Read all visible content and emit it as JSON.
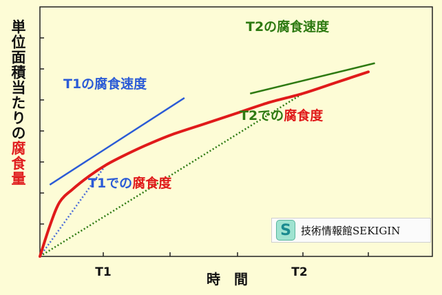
{
  "chart_data": {
    "type": "line",
    "title": "",
    "xlabel": "時　間",
    "ylabel": "単位面積当たりの腐食量",
    "ylabel_plain": "単位面積当たりの",
    "ylabel_emphasis": "腐食量",
    "x_ticks": [
      "T1",
      "T2"
    ],
    "xlim": [
      0,
      1
    ],
    "ylim": [
      0,
      1
    ],
    "grid": false,
    "curve": {
      "name": "",
      "color": "#e01a1a",
      "x": [
        0,
        0.03,
        0.06,
        0.1,
        0.15,
        0.2,
        0.25,
        0.32,
        0.4,
        0.5,
        0.6,
        0.7,
        0.8,
        0.9,
        1.0
      ],
      "y": [
        0,
        0.14,
        0.25,
        0.31,
        0.37,
        0.42,
        0.46,
        0.51,
        0.56,
        0.61,
        0.66,
        0.71,
        0.75,
        0.8,
        0.85
      ]
    },
    "tangent_lines": [
      {
        "color": "#2b5bd6",
        "x": [
          0.03,
          0.44
        ],
        "y": [
          0.33,
          0.73
        ]
      },
      {
        "color": "#2e7a12",
        "x": [
          0.64,
          1.02
        ],
        "y": [
          0.75,
          0.89
        ]
      }
    ],
    "secant_lines": [
      {
        "color": "#4a6bd8",
        "x": [
          0,
          0.2
        ],
        "y": [
          0,
          0.42
        ]
      },
      {
        "color": "#2e7a12",
        "x": [
          0,
          0.8
        ],
        "y": [
          0,
          0.75
        ]
      }
    ],
    "annotations": [
      {
        "id": "t1_rate",
        "text": "T1の腐食速度",
        "color": "#2b5bd6"
      },
      {
        "id": "t1_avg",
        "text_plain": "T1での",
        "text_emphasis": "腐食度",
        "color": "#2b5bd6",
        "emphasis_color": "#e01a1a"
      },
      {
        "id": "t2_rate",
        "text": "T2の腐食速度",
        "color": "#2e7a12"
      },
      {
        "id": "t2_avg",
        "text_plain": "T2での",
        "text_emphasis": "腐食度",
        "color": "#2e7a12",
        "emphasis_color": "#e01a1a"
      }
    ],
    "watermark": {
      "badge": "S",
      "text": "技術情報館SEKIGIN"
    }
  }
}
